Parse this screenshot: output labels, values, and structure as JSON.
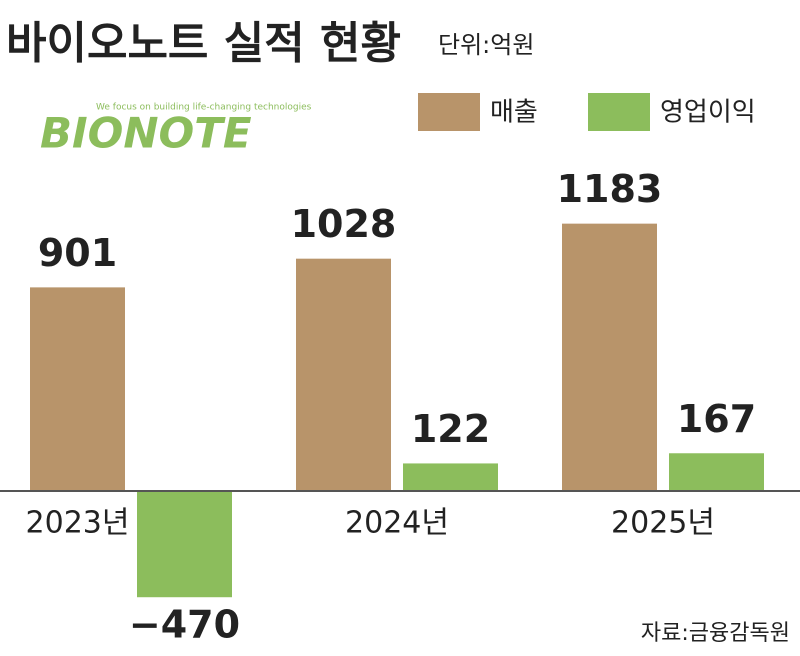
{
  "chart_data": {
    "type": "bar",
    "title": "바이오노트 실적 현황",
    "subtitle": "단위:억원",
    "logo": "BIONOTE",
    "tagline": "We focus on building life-changing technologies",
    "source": "자료:금융감독원",
    "categories": [
      "2023년",
      "2024년",
      "2025년"
    ],
    "series": [
      {
        "name": "매출",
        "color": "#b8946a",
        "values": [
          901,
          1028,
          1183
        ]
      },
      {
        "name": "영업이익",
        "color": "#8cbd5c",
        "values": [
          -470,
          122,
          167
        ],
        "value_labels": [
          "−470",
          "122",
          "167"
        ]
      }
    ]
  }
}
